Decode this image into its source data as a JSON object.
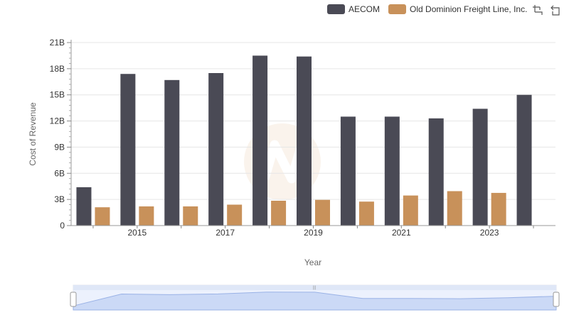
{
  "chart_data": {
    "type": "bar",
    "title": "",
    "xlabel": "Year",
    "ylabel": "Cost of Revenue",
    "categories": [
      "2014",
      "2015",
      "2016",
      "2017",
      "2018",
      "2019",
      "2020",
      "2021",
      "2022",
      "2023",
      "2024"
    ],
    "x_tick_labels": [
      "2015",
      "2017",
      "2019",
      "2021",
      "2023"
    ],
    "y_tick_labels": [
      "0",
      "3B",
      "6B",
      "9B",
      "12B",
      "15B",
      "18B",
      "21B"
    ],
    "ylim": [
      0,
      21000000000
    ],
    "grid": true,
    "legend_position": "top-right",
    "series": [
      {
        "name": "AECOM",
        "color": "#4a4a55",
        "values": [
          4400000000,
          17400000000,
          16700000000,
          17500000000,
          19500000000,
          19400000000,
          12500000000,
          12500000000,
          12300000000,
          13400000000,
          15000000000
        ]
      },
      {
        "name": "Old Dominion Freight Line, Inc.",
        "color": "#c8915a",
        "values": [
          2100000000,
          2200000000,
          2200000000,
          2400000000,
          2850000000,
          2950000000,
          2750000000,
          3450000000,
          3950000000,
          3750000000,
          null
        ]
      }
    ]
  },
  "legend": {
    "items": [
      {
        "label": "AECOM",
        "color": "#4a4a55"
      },
      {
        "label": "Old Dominion Freight Line, Inc.",
        "color": "#c8915a"
      }
    ]
  },
  "toolbar": {
    "icons": [
      "zoom-in-icon",
      "reset-zoom-icon"
    ]
  },
  "navigator": {
    "fill_color": "#dce6fb",
    "line_color": "#9ab2e6"
  }
}
